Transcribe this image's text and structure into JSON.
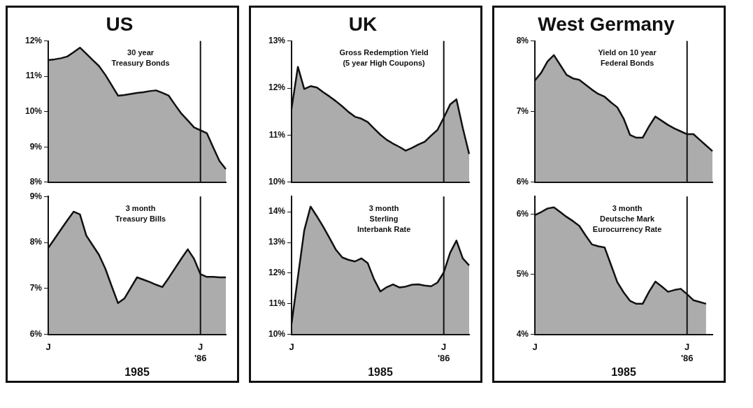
{
  "chart_data": [
    {
      "type": "area",
      "title": "US",
      "categories": [
        "J",
        null,
        null,
        null,
        null,
        null,
        null,
        null,
        null,
        null,
        null,
        null,
        null,
        null,
        null,
        null,
        null,
        null,
        null,
        null,
        null,
        null,
        null,
        null,
        "J\n'86",
        null,
        null,
        null,
        null
      ],
      "tick_labels": "y",
      "ylim": [
        8,
        12
      ],
      "yticks": [
        {
          "value": 8,
          "label": "8%"
        },
        {
          "value": 9,
          "label": "9%"
        },
        {
          "value": 10,
          "label": "10%"
        },
        {
          "value": 11,
          "label": "11%"
        },
        {
          "value": 12,
          "label": "12%"
        }
      ],
      "ref_lines": [
        {
          "axis": "x",
          "value": "J\n'86",
          "color": "#111111"
        }
      ],
      "series": [
        {
          "name": "30 year\nTreasury Bonds",
          "color": "#111111",
          "values": [
            11.46,
            11.48,
            11.51,
            11.56,
            11.68,
            11.81,
            11.64,
            11.46,
            11.29,
            11.04,
            10.75,
            10.45,
            10.47,
            10.5,
            10.53,
            10.55,
            10.58,
            10.6,
            10.53,
            10.45,
            10.19,
            9.94,
            9.75,
            9.55,
            9.47,
            9.39,
            8.99,
            8.6,
            8.37
          ]
        }
      ]
    },
    {
      "type": "area",
      "title": "UK",
      "categories": [
        "J",
        null,
        null,
        null,
        null,
        null,
        null,
        null,
        null,
        null,
        null,
        null,
        null,
        null,
        null,
        null,
        null,
        null,
        null,
        null,
        null,
        null,
        null,
        null,
        "J\n'86",
        null,
        null,
        null,
        null
      ],
      "tick_labels": "y",
      "ylim": [
        10,
        13
      ],
      "yticks": [
        {
          "value": 10,
          "label": "10%"
        },
        {
          "value": 11,
          "label": "11%"
        },
        {
          "value": 12,
          "label": "12%"
        },
        {
          "value": 13,
          "label": "13%"
        }
      ],
      "ref_lines": [
        {
          "axis": "x",
          "value": "J\n'86",
          "color": "#111111"
        }
      ],
      "series": [
        {
          "name": "Gross Redemption Yield\n(5 year High Coupons)",
          "color": "#111111",
          "values": [
            11.56,
            12.45,
            11.98,
            12.04,
            12.01,
            11.91,
            11.82,
            11.72,
            11.61,
            11.49,
            11.39,
            11.35,
            11.28,
            11.14,
            11.01,
            10.9,
            10.82,
            10.75,
            10.67,
            10.73,
            10.8,
            10.86,
            10.99,
            11.11,
            11.37,
            11.65,
            11.76,
            11.15,
            10.6
          ]
        }
      ]
    },
    {
      "type": "area",
      "title": "West Germany",
      "categories": [
        "J",
        null,
        null,
        null,
        null,
        null,
        null,
        null,
        null,
        null,
        null,
        null,
        null,
        null,
        null,
        null,
        null,
        null,
        null,
        null,
        null,
        null,
        null,
        null,
        "J\n'86",
        null,
        null,
        null,
        null
      ],
      "tick_labels": "y",
      "ylim": [
        6,
        8
      ],
      "yticks": [
        {
          "value": 6,
          "label": "6%"
        },
        {
          "value": 7,
          "label": "7%"
        },
        {
          "value": 8,
          "label": "8%"
        }
      ],
      "ref_lines": [
        {
          "axis": "x",
          "value": "J\n'86",
          "color": "#111111"
        }
      ],
      "series": [
        {
          "name": "Yield on 10 year\nFederal Bonds",
          "color": "#111111",
          "values": [
            7.44,
            7.55,
            7.71,
            7.8,
            7.66,
            7.52,
            7.47,
            7.45,
            7.38,
            7.31,
            7.25,
            7.21,
            7.13,
            7.06,
            6.9,
            6.67,
            6.63,
            6.63,
            6.79,
            6.93,
            6.87,
            6.81,
            6.76,
            6.72,
            6.68,
            6.68,
            6.6,
            6.52,
            6.44
          ]
        }
      ]
    },
    {
      "type": "area",
      "xlabel": "1985",
      "categories": [
        "J",
        null,
        null,
        null,
        null,
        null,
        null,
        null,
        null,
        null,
        null,
        null,
        null,
        null,
        null,
        null,
        null,
        null,
        null,
        null,
        null,
        null,
        null,
        null,
        "J\n'86",
        null,
        null,
        null,
        null
      ],
      "ylim": [
        6,
        9
      ],
      "yticks": [
        {
          "value": 6,
          "label": "6%"
        },
        {
          "value": 7,
          "label": "7%"
        },
        {
          "value": 8,
          "label": "8%"
        },
        {
          "value": 9,
          "label": "9%"
        }
      ],
      "ref_lines": [
        {
          "axis": "x",
          "value": "J\n'86",
          "color": "#111111"
        }
      ],
      "series": [
        {
          "name": "3 month\nTreasury Bills",
          "color": "#111111",
          "values": [
            7.88,
            8.08,
            8.28,
            8.48,
            8.67,
            8.61,
            8.15,
            7.94,
            7.73,
            7.43,
            7.05,
            6.68,
            6.78,
            7.01,
            7.24,
            7.19,
            7.14,
            7.08,
            7.03,
            7.23,
            7.44,
            7.65,
            7.85,
            7.64,
            7.31,
            7.25,
            7.25,
            7.24,
            7.24
          ]
        }
      ]
    },
    {
      "type": "area",
      "xlabel": "1985",
      "categories": [
        "J",
        null,
        null,
        null,
        null,
        null,
        null,
        null,
        null,
        null,
        null,
        null,
        null,
        null,
        null,
        null,
        null,
        null,
        null,
        null,
        null,
        null,
        null,
        null,
        "J\n'86",
        null,
        null,
        null,
        null
      ],
      "ylim": [
        10,
        14.5
      ],
      "yticks": [
        {
          "value": 10,
          "label": "10%"
        },
        {
          "value": 11,
          "label": "11%"
        },
        {
          "value": 12,
          "label": "12%"
        },
        {
          "value": 13,
          "label": "13%"
        },
        {
          "value": 14,
          "label": "14%"
        }
      ],
      "ref_lines": [
        {
          "axis": "x",
          "value": "J\n'86",
          "color": "#111111"
        }
      ],
      "series": [
        {
          "name": "3 month\nSterling\nInterbank Rate",
          "color": "#111111",
          "values": [
            10.35,
            11.87,
            13.39,
            14.17,
            13.85,
            13.51,
            13.14,
            12.76,
            12.51,
            12.43,
            12.38,
            12.48,
            12.33,
            11.8,
            11.4,
            11.54,
            11.63,
            11.53,
            11.56,
            11.62,
            11.63,
            11.59,
            11.57,
            11.69,
            12.02,
            12.66,
            13.06,
            12.48,
            12.25
          ]
        }
      ]
    },
    {
      "type": "area",
      "xlabel": "1985",
      "categories": [
        "J",
        null,
        null,
        null,
        null,
        null,
        null,
        null,
        null,
        null,
        null,
        null,
        null,
        null,
        null,
        null,
        null,
        null,
        null,
        null,
        null,
        null,
        null,
        null,
        "J\n'86",
        null,
        null,
        null,
        null
      ],
      "ylim": [
        4,
        6.3
      ],
      "yticks": [
        {
          "value": 4,
          "label": "4%"
        },
        {
          "value": 5,
          "label": "5%"
        },
        {
          "value": 6,
          "label": "6%"
        }
      ],
      "ref_lines": [
        {
          "axis": "x",
          "value": "J\n'86",
          "color": "#111111"
        }
      ],
      "series": [
        {
          "name": "3 month\nDeutsche Mark\nEurocurrency Rate",
          "color": "#111111",
          "values": [
            5.99,
            6.04,
            6.1,
            6.12,
            6.04,
            5.96,
            5.89,
            5.81,
            5.65,
            5.5,
            5.47,
            5.45,
            5.16,
            4.87,
            4.7,
            4.56,
            4.51,
            4.51,
            4.71,
            4.88,
            4.8,
            4.71,
            4.74,
            4.76,
            4.67,
            4.57,
            4.54,
            4.51,
            null
          ]
        }
      ]
    }
  ]
}
